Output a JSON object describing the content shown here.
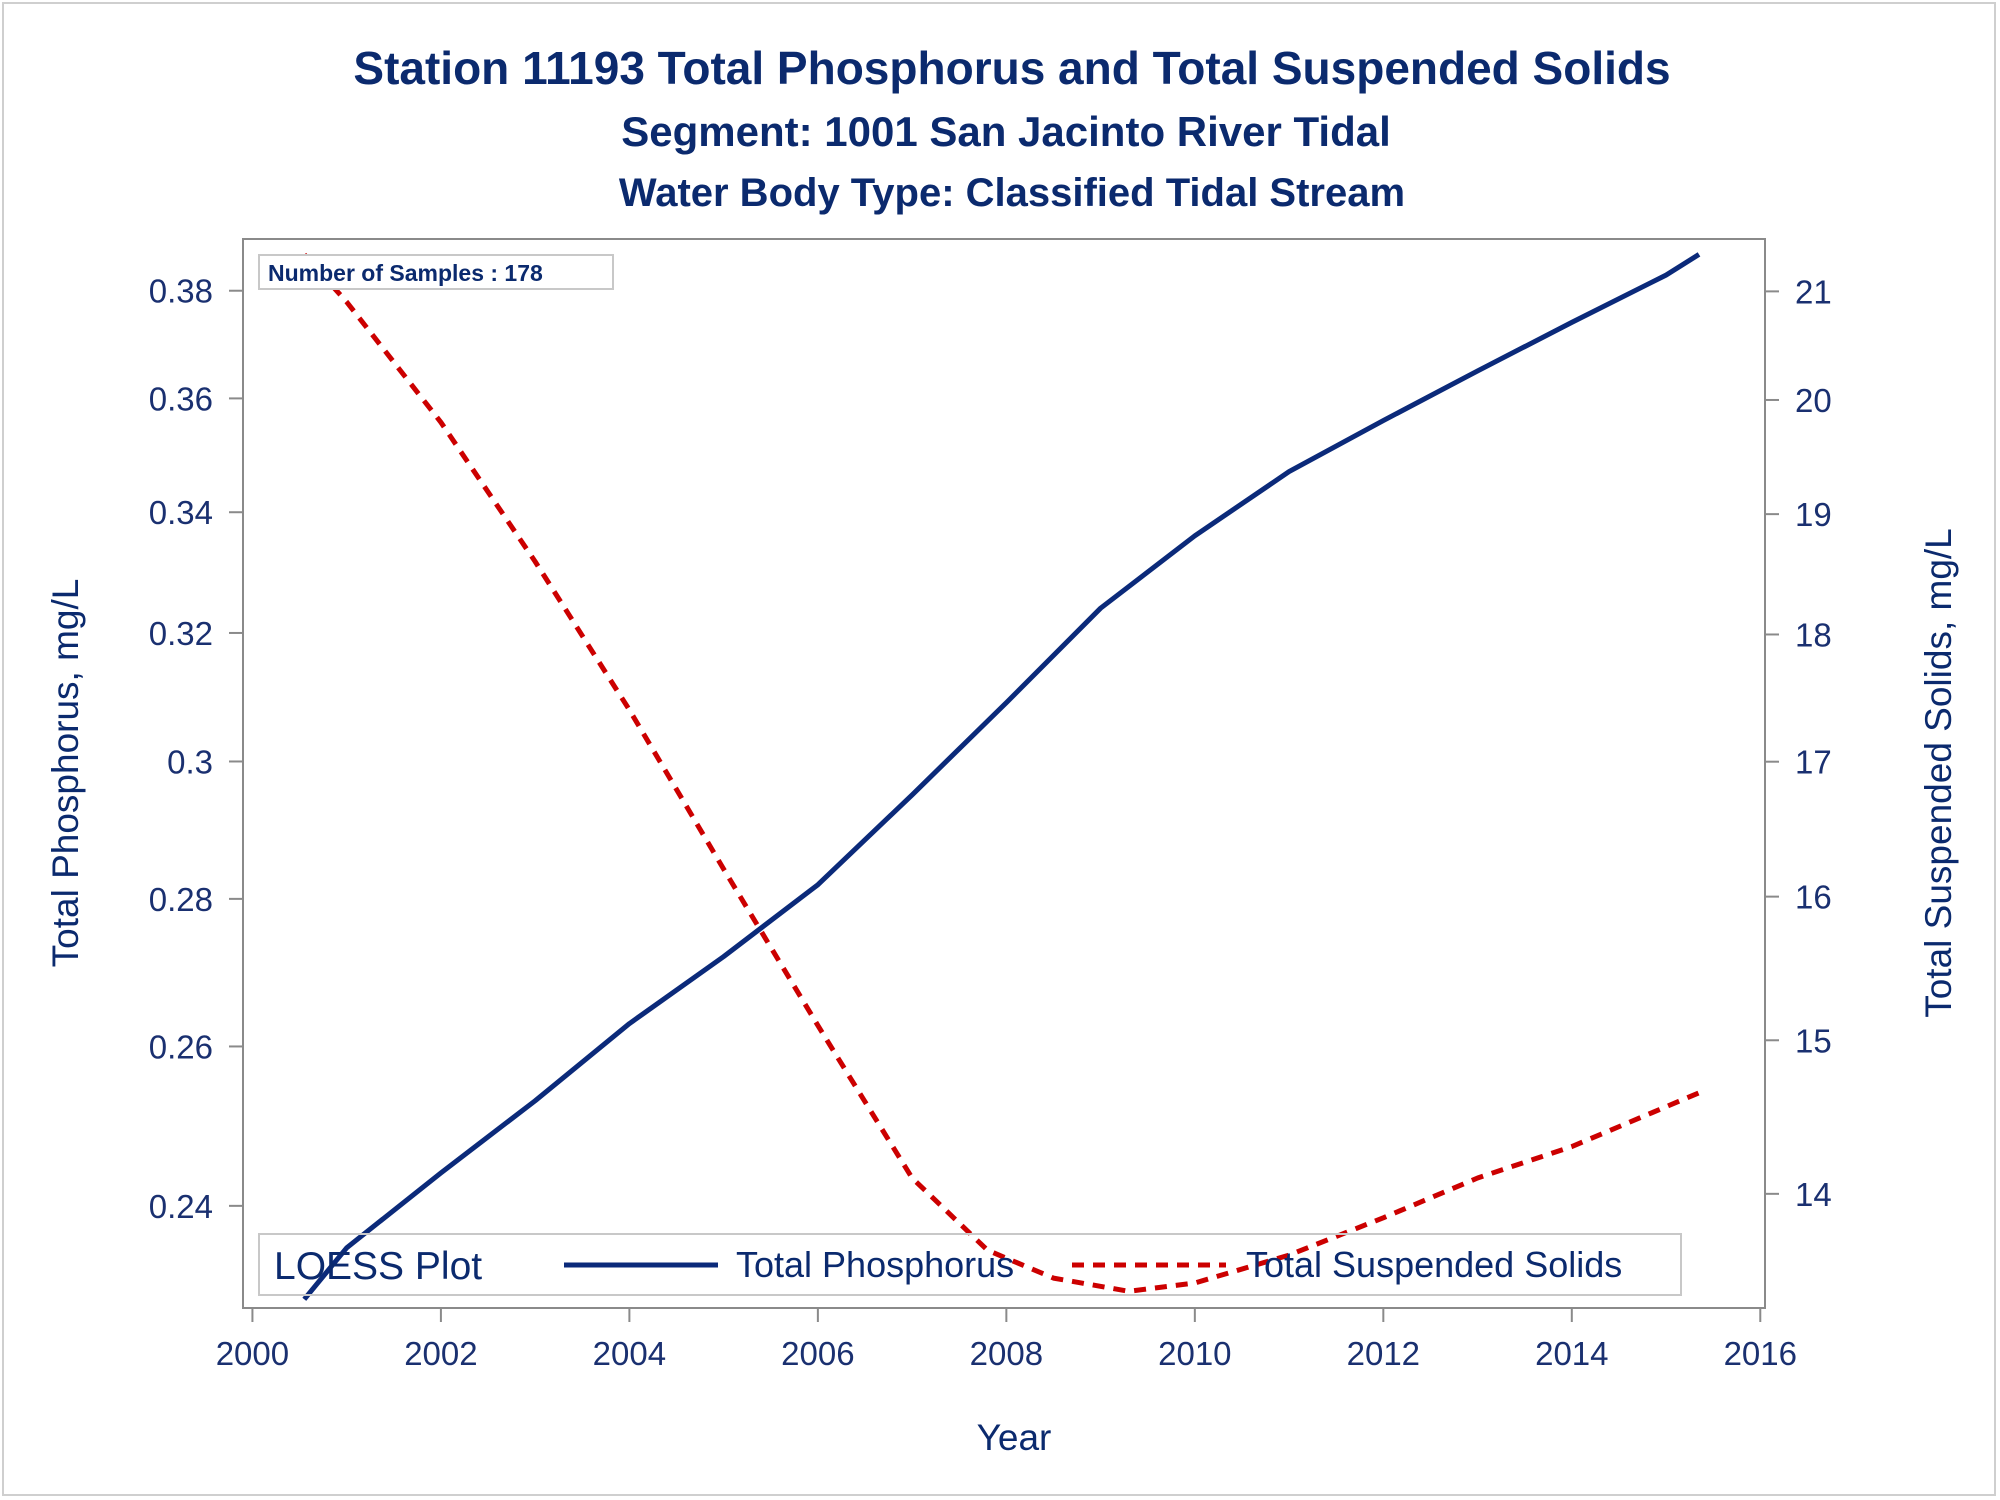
{
  "titles": {
    "line1": "Station 11193  Total Phosphorus and Total Suspended Solids",
    "line2": "Segment: 1001  San Jacinto River Tidal",
    "line3": "Water Body Type: Classified Tidal Stream"
  },
  "inset": "Number of Samples : 178",
  "legend": {
    "title": "LOESS Plot",
    "items": [
      "Total Phosphorus",
      "Total Suspended Solids"
    ]
  },
  "colors": {
    "phosphorus": "#0b2a7a",
    "tss": "#cc0000",
    "text": "#0b2a6e",
    "axis": "#8a8a8a"
  },
  "chart_data": {
    "type": "line",
    "title": "Station 11193  Total Phosphorus and Total Suspended Solids",
    "subtitle": [
      "Segment: 1001  San Jacinto River Tidal",
      "Water Body Type: Classified Tidal Stream"
    ],
    "xlabel": "Year",
    "ylabel": "Total Phosphorus, mg/L",
    "y2label": "Total Suspended Solids, mg/L",
    "xlim": [
      1999.9,
      2016.05
    ],
    "xticks": [
      2000,
      2002,
      2004,
      2006,
      2008,
      2010,
      2012,
      2014,
      2016
    ],
    "xtick_labels": [
      "2000",
      "2002",
      "2004",
      "2006",
      "2008",
      "2010",
      "2012",
      "2014",
      "2016"
    ],
    "y_scale": "log",
    "ylim": [
      0.228,
      0.39
    ],
    "yticks": [
      0.24,
      0.26,
      0.28,
      0.3,
      0.32,
      0.34,
      0.36,
      0.38
    ],
    "ytick_labels": [
      "0.24",
      "0.26",
      "0.28",
      "0.3",
      "0.32",
      "0.34",
      "0.36",
      "0.38"
    ],
    "y2_scale": "log",
    "y2lim": [
      13.3,
      21.5
    ],
    "y2ticks": [
      14,
      15,
      16,
      17,
      18,
      19,
      20,
      21
    ],
    "y2tick_labels": [
      "14",
      "15",
      "16",
      "17",
      "18",
      "19",
      "20",
      "21"
    ],
    "grid": false,
    "legend_position": "bottom-inside",
    "series": [
      {
        "name": "Total Phosphorus",
        "axis": "left",
        "style": "solid",
        "x": [
          2000.55,
          2001,
          2002,
          2003,
          2004,
          2005,
          2006,
          2007,
          2008,
          2009,
          2010,
          2011,
          2012,
          2013,
          2014,
          2015,
          2015.35
        ],
        "y": [
          0.229,
          0.235,
          0.244,
          0.253,
          0.263,
          0.272,
          0.282,
          0.295,
          0.309,
          0.324,
          0.336,
          0.347,
          0.356,
          0.365,
          0.374,
          0.383,
          0.387
        ]
      },
      {
        "name": "Total Suspended Solids",
        "axis": "right",
        "style": "dashed",
        "x": [
          2000.55,
          2001,
          2002,
          2003,
          2004,
          2005,
          2006,
          2007,
          2007.8,
          2008.5,
          2009.3,
          2010,
          2011,
          2012,
          2013,
          2014,
          2015.35
        ],
        "y": [
          21.35,
          20.9,
          19.8,
          18.6,
          17.4,
          16.2,
          15.1,
          14.1,
          13.65,
          13.48,
          13.4,
          13.45,
          13.62,
          13.85,
          14.1,
          14.3,
          14.65
        ]
      }
    ]
  }
}
